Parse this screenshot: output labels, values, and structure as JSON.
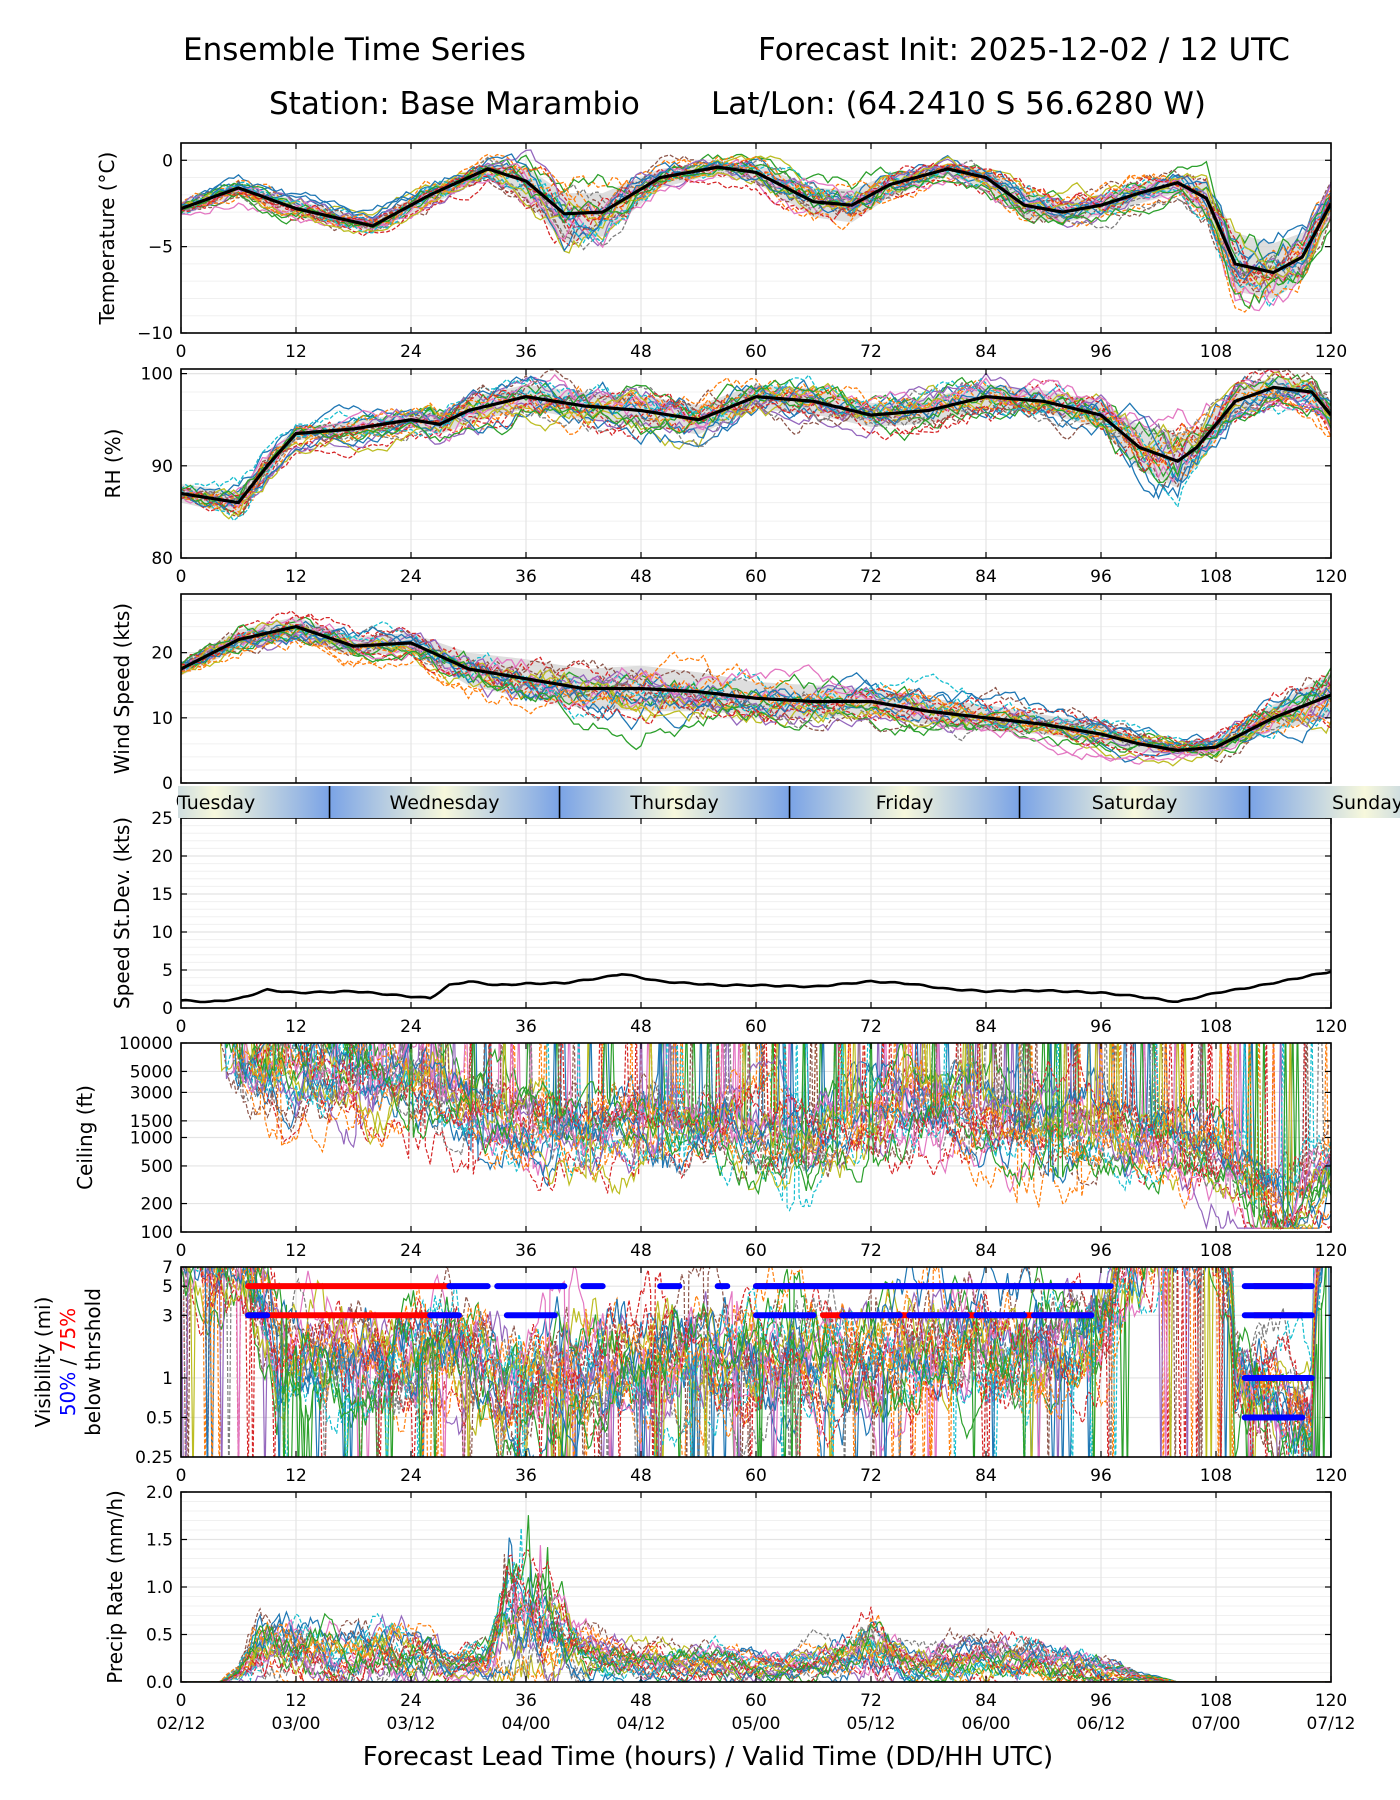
{
  "header": {
    "title_left": "Ensemble Time Series",
    "title_right": "Forecast Init: 2025-12-02 / 12 UTC",
    "station": "Station: Base Marambio",
    "latlon": "Lat/Lon: (64.2410 S 56.6280 W)"
  },
  "x_axis": {
    "label": "Forecast Lead Time (hours) / Valid Time (DD/HH UTC)",
    "xlim": [
      0,
      120
    ],
    "ticks": [
      0,
      12,
      24,
      36,
      48,
      60,
      72,
      84,
      96,
      108,
      120
    ],
    "tick_labels": [
      "0",
      "12",
      "24",
      "36",
      "48",
      "60",
      "72",
      "84",
      "96",
      "108",
      "120"
    ],
    "valid_labels": [
      "02/12",
      "03/00",
      "03/12",
      "04/00",
      "04/12",
      "05/00",
      "05/12",
      "06/00",
      "06/12",
      "07/00",
      "07/12"
    ]
  },
  "day_band": {
    "labels": [
      "Tuesday",
      "Wednesday",
      "Thursday",
      "Friday",
      "Saturday",
      "Sunday"
    ],
    "boundaries_hours": [
      15.5,
      39.5,
      63.5,
      87.5,
      111.5
    ]
  },
  "chart_data": [
    {
      "id": "temperature",
      "type": "line",
      "ylabel": "Temperature (°C)",
      "ylim": [
        -10,
        1
      ],
      "yticks": [
        0,
        -5,
        -10
      ],
      "ytick_labels": [
        "0",
        "−5",
        "−10"
      ],
      "mean_x": [
        0,
        6,
        12,
        20,
        26,
        32,
        36,
        40,
        44,
        50,
        56,
        60,
        66,
        70,
        74,
        80,
        84,
        88,
        92,
        96,
        100,
        104,
        107,
        110,
        114,
        117,
        120
      ],
      "mean_y": [
        -2.8,
        -1.6,
        -2.8,
        -3.8,
        -2.0,
        -0.5,
        -1.2,
        -3.1,
        -3.0,
        -1.0,
        -0.4,
        -0.7,
        -2.4,
        -2.6,
        -1.4,
        -0.5,
        -1.0,
        -2.6,
        -3.0,
        -2.6,
        -1.9,
        -1.3,
        -2.2,
        -6.0,
        -6.5,
        -5.6,
        -2.5
      ],
      "spread_lo": [
        -3.2,
        -2.0,
        -3.3,
        -4.1,
        -2.6,
        -1.0,
        -2.3,
        -4.8,
        -4.4,
        -1.6,
        -0.8,
        -1.3,
        -3.3,
        -3.6,
        -2.1,
        -0.9,
        -1.6,
        -3.4,
        -3.6,
        -3.2,
        -2.5,
        -1.9,
        -3.3,
        -7.6,
        -8.0,
        -7.0,
        -3.3
      ],
      "spread_hi": [
        -2.4,
        -1.3,
        -2.3,
        -3.5,
        -1.5,
        -0.2,
        -0.4,
        -1.9,
        -1.9,
        -0.5,
        -0.1,
        -0.2,
        -1.6,
        -1.7,
        -0.8,
        -0.2,
        -0.5,
        -1.8,
        -2.4,
        -2.0,
        -1.4,
        -0.8,
        -1.3,
        -4.2,
        -4.8,
        -4.2,
        -1.8
      ],
      "members_count": 24
    },
    {
      "id": "rh",
      "type": "line",
      "ylabel": "RH (%)",
      "ylim": [
        80,
        100.5
      ],
      "yticks": [
        100,
        90,
        80
      ],
      "ytick_labels": [
        "100",
        "90",
        "80"
      ],
      "mean_x": [
        0,
        3,
        6,
        9,
        12,
        18,
        24,
        27,
        30,
        36,
        42,
        48,
        54,
        60,
        66,
        72,
        78,
        84,
        90,
        96,
        100,
        104,
        106,
        110,
        114,
        118,
        120
      ],
      "mean_y": [
        87,
        86.5,
        86,
        90,
        93.5,
        94,
        95,
        94.5,
        96,
        97.5,
        96.5,
        96,
        95,
        97.5,
        97,
        95.5,
        96,
        97.5,
        97,
        95.5,
        92,
        90.5,
        92,
        97,
        98.5,
        98,
        95.5
      ],
      "spread_lo": [
        86,
        85.3,
        84.8,
        88.8,
        92.8,
        93.2,
        94.2,
        93.4,
        94.6,
        96.2,
        95.0,
        94.4,
        93.4,
        96.2,
        95.6,
        94.2,
        94.6,
        96.2,
        95.8,
        94.0,
        89.6,
        87.6,
        90.0,
        95.6,
        97.4,
        96.8,
        94.0
      ],
      "spread_hi": [
        88,
        87.6,
        87.2,
        91.2,
        94.2,
        94.8,
        95.8,
        95.8,
        97.4,
        98.8,
        98.0,
        97.6,
        96.6,
        98.8,
        98.4,
        96.8,
        97.4,
        98.8,
        98.2,
        97.0,
        94.4,
        93.4,
        94.0,
        98.4,
        99.6,
        99.2,
        97.0
      ],
      "members_count": 24
    },
    {
      "id": "wind",
      "type": "line",
      "ylabel": "Wind Speed (kts)",
      "ylim": [
        0,
        29
      ],
      "yticks": [
        0,
        10,
        20
      ],
      "ytick_labels": [
        "0",
        "10",
        "20"
      ],
      "mean_x": [
        0,
        6,
        12,
        18,
        24,
        30,
        36,
        42,
        48,
        54,
        60,
        66,
        72,
        78,
        84,
        90,
        96,
        100,
        104,
        108,
        114,
        120
      ],
      "mean_y": [
        17.5,
        22,
        24,
        21,
        21.5,
        17.5,
        16,
        14.5,
        14.5,
        14,
        13,
        12.5,
        12.5,
        11,
        10,
        9,
        7.5,
        6,
        5,
        5.5,
        10,
        13.5
      ],
      "spread_lo": [
        16.5,
        20.5,
        22.0,
        19.5,
        20.0,
        15.0,
        13.0,
        11.5,
        11.0,
        11.0,
        10.5,
        10.0,
        10.5,
        9.0,
        8.0,
        7.5,
        6.0,
        4.8,
        4.2,
        4.5,
        8.0,
        10.0
      ],
      "spread_hi": [
        18.5,
        23.5,
        25.5,
        22.5,
        23.0,
        20.0,
        19.0,
        17.5,
        18.0,
        17.0,
        15.5,
        15.0,
        14.5,
        13.0,
        12.0,
        10.5,
        9.0,
        7.2,
        6.0,
        7.0,
        12.0,
        17.0
      ],
      "members_count": 24
    },
    {
      "id": "stdev",
      "type": "line",
      "ylabel": "Speed St.Dev. (kts)",
      "ylim": [
        0,
        25
      ],
      "yticks": [
        0,
        5,
        10,
        15,
        20,
        25
      ],
      "ytick_labels": [
        "0",
        "5",
        "10",
        "15",
        "20",
        "25"
      ],
      "x": [
        0,
        3,
        6,
        9,
        12,
        18,
        24,
        26,
        28,
        30,
        33,
        36,
        40,
        44,
        46,
        50,
        56,
        60,
        66,
        72,
        76,
        80,
        84,
        90,
        96,
        100,
        104,
        108,
        112,
        116,
        120
      ],
      "y": [
        1.0,
        0.8,
        1.2,
        2.4,
        2.0,
        2.2,
        1.5,
        1.3,
        3.0,
        3.5,
        3.0,
        3.2,
        3.3,
        4.0,
        4.5,
        3.5,
        3.0,
        3.0,
        2.8,
        3.5,
        3.2,
        2.5,
        2.2,
        2.3,
        2.0,
        1.5,
        0.8,
        2.0,
        2.8,
        3.8,
        4.8
      ]
    },
    {
      "id": "ceiling",
      "type": "line",
      "ylabel": "Ceiling (ft)",
      "scale": "log",
      "ylim": [
        100,
        10000
      ],
      "yticks": [
        100,
        200,
        500,
        1000,
        1500,
        3000,
        5000,
        10000
      ],
      "ytick_labels": [
        "100",
        "200",
        "500",
        "1000",
        "1500",
        "3000",
        "5000",
        "10000"
      ],
      "members_count": 24
    },
    {
      "id": "visibility",
      "type": "line",
      "ylabel": "Visibility (mi)",
      "ylabel_line2_a": "50%",
      "ylabel_line2_sep": " / ",
      "ylabel_line2_b": "75%",
      "ylabel_line3": "below thrshold",
      "scale": "log",
      "ylim": [
        0.25,
        7
      ],
      "yticks": [
        0.25,
        0.5,
        1,
        3,
        5,
        7
      ],
      "ytick_labels": [
        "0.25",
        "0.5",
        "1",
        "3",
        "5",
        "7"
      ],
      "threshold_75_red": [
        {
          "level": 5,
          "from": 7,
          "to": 28
        },
        {
          "level": 3,
          "from": 7,
          "to": 28
        },
        {
          "level": 5,
          "from": 60,
          "to": 96
        },
        {
          "level": 3,
          "from": 67,
          "to": 95
        },
        {
          "level": 3,
          "from": 112,
          "to": 117
        },
        {
          "level": 5,
          "from": 112,
          "to": 117
        }
      ],
      "threshold_50_blue": [
        {
          "level": 5,
          "segments": [
            [
              28,
              32
            ],
            [
              33,
              40
            ],
            [
              42,
              44
            ],
            [
              50,
              52
            ],
            [
              56,
              57
            ],
            [
              60,
              97
            ],
            [
              111,
              118
            ]
          ]
        },
        {
          "level": 3,
          "segments": [
            [
              7,
              9
            ],
            [
              26,
              29
            ],
            [
              34,
              39
            ],
            [
              60,
              66
            ],
            [
              69,
              75
            ],
            [
              76,
              82
            ],
            [
              83,
              88
            ],
            [
              89,
              95
            ],
            [
              111,
              118
            ]
          ]
        },
        {
          "level": 1,
          "segments": [
            [
              111,
              118
            ]
          ]
        },
        {
          "level": 0.5,
          "segments": [
            [
              111,
              117
            ]
          ]
        }
      ],
      "members_count": 24
    },
    {
      "id": "precip",
      "type": "line",
      "ylabel": "Precip Rate (mm/h)",
      "ylim": [
        0,
        2.0
      ],
      "yticks": [
        0.0,
        0.5,
        1.0,
        1.5,
        2.0
      ],
      "ytick_labels": [
        "0.0",
        "0.5",
        "1.0",
        "1.5",
        "2.0"
      ],
      "members_count": 24
    }
  ],
  "colors": {
    "mean": "#000000",
    "spread": "#d3d3d3",
    "grid": "#e4e4e4",
    "vis_red": "#ff0000",
    "vis_blue": "#0000ff",
    "band_light": "#f7f8dc",
    "band_blue": "#7aa3e6",
    "members": [
      "#1f77b4",
      "#ff7f0e",
      "#2ca02c",
      "#d62728",
      "#9467bd",
      "#8c564b",
      "#e377c2",
      "#7f7f7f",
      "#bcbd22",
      "#17becf"
    ]
  }
}
